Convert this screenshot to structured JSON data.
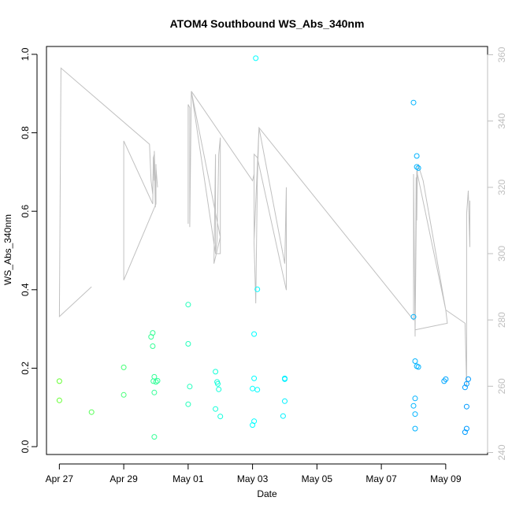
{
  "chart_data": {
    "type": "scatter",
    "title": "ATOM4 Southbound WS_Abs_340nm",
    "xlabel": "Date",
    "ylabel": "WS_Abs_340nm",
    "x_ticks": [
      "Apr 27",
      "Apr 29",
      "May 01",
      "May 03",
      "May 05",
      "May 07",
      "May 09"
    ],
    "y_ticks": [
      "0.0",
      "0.2",
      "0.4",
      "0.6",
      "0.8",
      "1.0"
    ],
    "y2_ticks": [
      "240",
      "260",
      "280",
      "300",
      "320",
      "340",
      "360"
    ],
    "xlim": [
      -0.4,
      13.3
    ],
    "ylim": [
      -0.02,
      1.02
    ],
    "y2lim": [
      239.4,
      362.5
    ],
    "grid": false,
    "legend": "none",
    "colors": {
      "series_start": "#66ff33",
      "series_mid": "#00ffff",
      "series_end": "#0099ff",
      "line": "#c0c0c0",
      "right_axis": "#bfbfbf"
    },
    "series": [
      {
        "type": "scatter",
        "points": [
          [
            0.0,
            0.167
          ],
          [
            0.0,
            0.118
          ],
          [
            1.0,
            0.088
          ],
          [
            2.0,
            0.202
          ],
          [
            2.0,
            0.132
          ],
          [
            2.85,
            0.28
          ],
          [
            2.9,
            0.29
          ],
          [
            2.9,
            0.256
          ],
          [
            2.92,
            0.167
          ],
          [
            2.95,
            0.178
          ],
          [
            2.95,
            0.138
          ],
          [
            2.95,
            0.025
          ],
          [
            3.0,
            0.165
          ],
          [
            3.05,
            0.168
          ],
          [
            4.0,
            0.362
          ],
          [
            4.0,
            0.262
          ],
          [
            4.05,
            0.153
          ],
          [
            4.0,
            0.108
          ],
          [
            4.85,
            0.191
          ],
          [
            4.9,
            0.165
          ],
          [
            4.92,
            0.16
          ],
          [
            4.95,
            0.146
          ],
          [
            4.85,
            0.096
          ],
          [
            5.0,
            0.077
          ],
          [
            6.1,
            0.99
          ],
          [
            6.05,
            0.287
          ],
          [
            6.05,
            0.174
          ],
          [
            6.0,
            0.148
          ],
          [
            6.15,
            0.401
          ],
          [
            6.15,
            0.145
          ],
          [
            6.05,
            0.065
          ],
          [
            6.0,
            0.055
          ],
          [
            7.0,
            0.174
          ],
          [
            7.0,
            0.172
          ],
          [
            6.95,
            0.078
          ],
          [
            7.0,
            0.116
          ],
          [
            11.0,
            0.877
          ],
          [
            11.1,
            0.741
          ],
          [
            11.1,
            0.713
          ],
          [
            11.15,
            0.71
          ],
          [
            11.0,
            0.331
          ],
          [
            11.05,
            0.218
          ],
          [
            11.1,
            0.205
          ],
          [
            11.15,
            0.203
          ],
          [
            11.05,
            0.123
          ],
          [
            11.0,
            0.104
          ],
          [
            11.05,
            0.083
          ],
          [
            11.05,
            0.046
          ],
          [
            11.95,
            0.167
          ],
          [
            12.0,
            0.172
          ],
          [
            12.6,
            0.151
          ],
          [
            12.65,
            0.16
          ],
          [
            12.7,
            0.172
          ],
          [
            12.65,
            0.102
          ],
          [
            12.65,
            0.046
          ],
          [
            12.6,
            0.037
          ]
        ]
      },
      {
        "type": "line",
        "axis": "right",
        "points": [
          [
            2.0,
            292
          ],
          [
            2.0,
            334
          ],
          [
            2.9,
            315
          ],
          [
            2.92,
            329
          ],
          [
            2.95,
            322
          ],
          [
            2.95,
            331
          ],
          [
            2.98,
            320
          ],
          [
            3.0,
            324
          ],
          [
            3.0,
            315
          ],
          [
            2.0,
            292
          ]
        ]
      },
      {
        "type": "line",
        "axis": "right",
        "points": [
          [
            0.0,
            281
          ],
          [
            0.0,
            281
          ],
          [
            1.0,
            290
          ],
          [
            0.0,
            281
          ],
          [
            0.05,
            356
          ],
          [
            2.8,
            333
          ],
          [
            2.85,
            322
          ],
          [
            2.9,
            318
          ],
          [
            2.92,
            329
          ],
          [
            2.95,
            330
          ],
          [
            2.98,
            314
          ],
          [
            3.0,
            327
          ],
          [
            3.0,
            322
          ],
          [
            3.0,
            326
          ],
          [
            3.05,
            320
          ]
        ]
      },
      {
        "type": "line",
        "axis": "right",
        "points": [
          [
            4.0,
            309
          ],
          [
            4.0,
            345
          ],
          [
            4.05,
            344
          ],
          [
            4.05,
            308
          ],
          [
            4.1,
            349
          ],
          [
            5.0,
            305
          ],
          [
            4.8,
            297
          ],
          [
            4.85,
            330
          ],
          [
            4.85,
            300
          ],
          [
            4.9,
            304
          ],
          [
            4.95,
            330
          ],
          [
            5.0,
            335
          ],
          [
            5.0,
            300
          ],
          [
            4.85,
            300
          ],
          [
            4.1,
            349
          ],
          [
            6.0,
            322
          ],
          [
            6.05,
            324
          ],
          [
            6.05,
            303
          ],
          [
            6.1,
            285
          ],
          [
            6.15,
            322
          ],
          [
            6.2,
            338
          ],
          [
            7.0,
            297
          ],
          [
            7.05,
            320
          ],
          [
            7.05,
            289
          ],
          [
            6.15,
            329
          ],
          [
            6.05,
            330
          ],
          [
            6.05,
            304
          ],
          [
            6.2,
            338
          ],
          [
            11.0,
            280
          ],
          [
            11.0,
            324
          ],
          [
            11.05,
            275
          ],
          [
            11.08,
            323
          ],
          [
            11.1,
            310
          ],
          [
            11.12,
            325
          ],
          [
            11.15,
            327
          ],
          [
            11.2,
            325
          ],
          [
            11.3,
            322
          ],
          [
            12.0,
            283
          ],
          [
            12.05,
            279
          ],
          [
            11.05,
            277
          ],
          [
            11.1,
            325
          ],
          [
            12.0,
            283
          ],
          [
            12.6,
            279
          ],
          [
            12.65,
            260
          ],
          [
            12.65,
            312
          ],
          [
            12.7,
            319
          ],
          [
            12.75,
            302
          ],
          [
            12.75,
            316
          ]
        ]
      }
    ]
  }
}
